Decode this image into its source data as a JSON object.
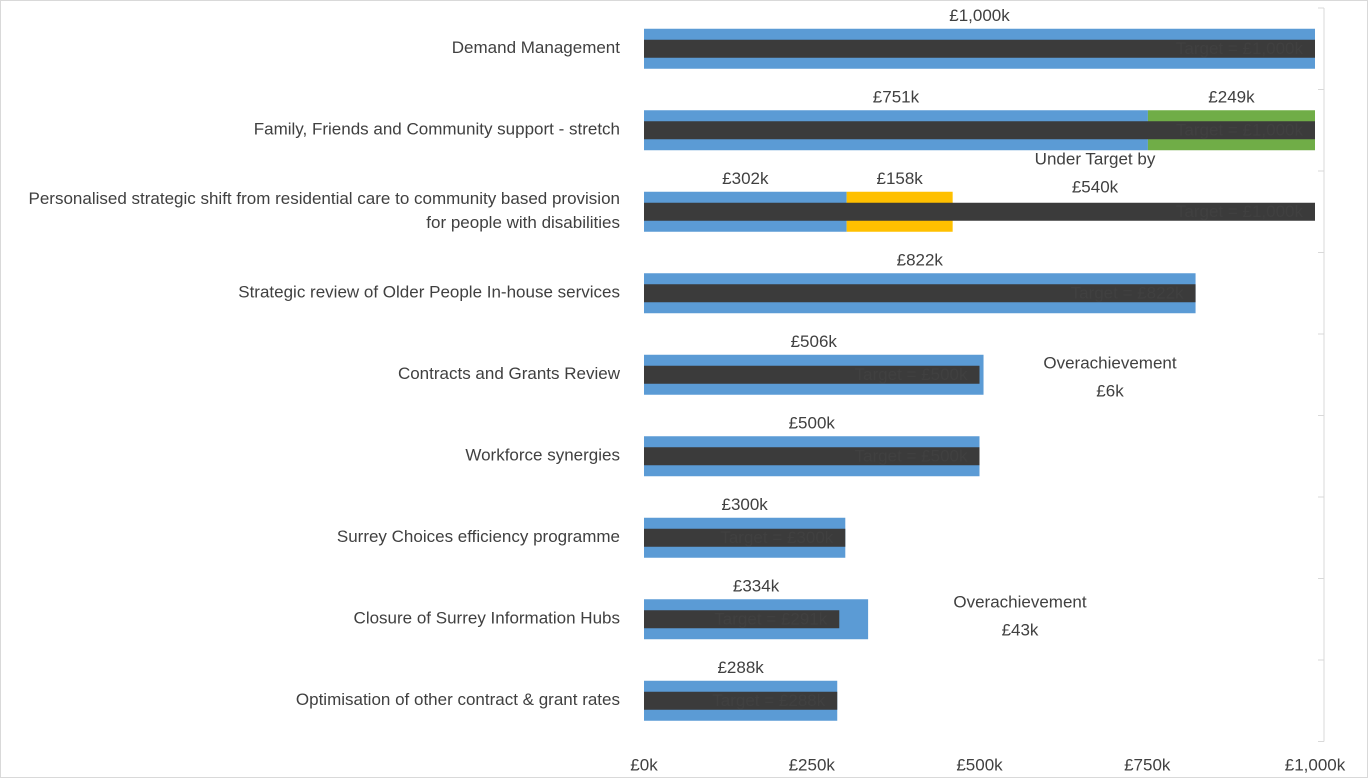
{
  "chart_data": {
    "type": "bar",
    "orientation": "horizontal",
    "categories": [
      "Demand Management",
      "Family, Friends and Community support - stretch",
      "Personalised strategic shift from residential care to community based provision for people with disabilities",
      "Strategic review of Older People In-house services",
      "Contracts and Grants Review",
      "Workforce synergies",
      "Surrey Choices efficiency programme",
      "Closure of Surrey Information Hubs",
      "Optimisation of other contract & grant rates"
    ],
    "series": [
      {
        "color": "#5b9bd5",
        "label_color": "#2e75b6",
        "values": [
          1000,
          751,
          302,
          822,
          506,
          500,
          300,
          334,
          288
        ],
        "value_labels": [
          "£1,000k",
          "£751k",
          "£302k",
          "£822k",
          "£506k",
          "£500k",
          "£300k",
          "£334k",
          "£288k"
        ]
      },
      {
        "color": "#70ad47",
        "label_color": "#548235",
        "values": [
          null,
          249,
          null,
          null,
          null,
          null,
          null,
          null,
          null
        ],
        "value_labels": [
          null,
          "£249k",
          null,
          null,
          null,
          null,
          null,
          null,
          null
        ]
      },
      {
        "color": "#ffc000",
        "label_color": "#bf8f00",
        "values": [
          null,
          null,
          158,
          null,
          null,
          null,
          null,
          null,
          null
        ],
        "value_labels": [
          null,
          null,
          "£158k",
          null,
          null,
          null,
          null,
          null,
          null
        ]
      }
    ],
    "target": {
      "color": "#3b3b3b",
      "values": [
        1000,
        1000,
        1000,
        822,
        500,
        500,
        300,
        291,
        288
      ],
      "value_labels": [
        "Target =  £1,000k",
        "Target =  £1,000k",
        "Target =  £1,000k",
        "Target =  £822k",
        "Target =  £500k",
        "Target =  £500k",
        "Target =  £300k",
        "Target =  £291k",
        "Target =  £288k"
      ]
    },
    "annotations": [
      {
        "lines": [
          "Under Target by",
          "£540k"
        ]
      },
      {
        "lines": [
          "Overachievement",
          "£6k"
        ]
      },
      {
        "lines": [
          "Overachievement",
          "£43k"
        ]
      }
    ],
    "xlim": [
      0,
      1000
    ],
    "xticks": [
      {
        "value": 0,
        "label": "£0k"
      },
      {
        "value": 250,
        "label": "£250k"
      },
      {
        "value": 500,
        "label": "£500k"
      },
      {
        "value": 750,
        "label": "£750k"
      },
      {
        "value": 1000,
        "label": "£1,000k"
      }
    ]
  }
}
